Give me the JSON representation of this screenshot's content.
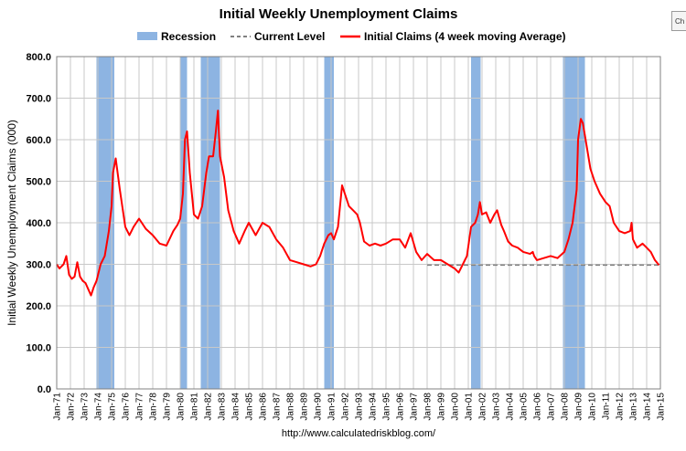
{
  "chart_data": {
    "type": "line",
    "title": "Initial Weekly Unemployment Claims",
    "ylabel": "Initial Weekly Unemployment Claims (000)",
    "xlabel": "",
    "ylim": [
      0,
      800
    ],
    "xlim": [
      1971.0,
      2015.0
    ],
    "y_ticks": [
      "0.0",
      "100.0",
      "200.0",
      "300.0",
      "400.0",
      "500.0",
      "600.0",
      "700.0",
      "800.0"
    ],
    "x_tick_labels": [
      "Jan-71",
      "Jan-72",
      "Jan-73",
      "Jan-74",
      "Jan-75",
      "Jan-76",
      "Jan-77",
      "Jan-78",
      "Jan-79",
      "Jan-80",
      "Jan-81",
      "Jan-82",
      "Jan-83",
      "Jan-84",
      "Jan-85",
      "Jan-86",
      "Jan-87",
      "Jan-88",
      "Jan-89",
      "Jan-90",
      "Jan-91",
      "Jan-92",
      "Jan-93",
      "Jan-94",
      "Jan-95",
      "Jan-96",
      "Jan-97",
      "Jan-98",
      "Jan-99",
      "Jan-00",
      "Jan-01",
      "Jan-02",
      "Jan-03",
      "Jan-04",
      "Jan-05",
      "Jan-06",
      "Jan-07",
      "Jan-08",
      "Jan-09",
      "Jan-10",
      "Jan-11",
      "Jan-12",
      "Jan-13",
      "Jan-14",
      "Jan-15"
    ],
    "grid": true,
    "legend": {
      "placement": "top",
      "entries": [
        {
          "name": "Recession",
          "kind": "bar",
          "color": "#8db4e2"
        },
        {
          "name": "Current Level",
          "kind": "dashed-line",
          "color": "#808080"
        },
        {
          "name": "Initial Claims (4 week moving Average)",
          "kind": "line",
          "color": "#ff0000"
        }
      ]
    },
    "recessions": [
      {
        "start": 1973.9,
        "end": 1975.2
      },
      {
        "start": 1980.0,
        "end": 1980.5
      },
      {
        "start": 1981.5,
        "end": 1982.9
      },
      {
        "start": 1990.5,
        "end": 1991.2
      },
      {
        "start": 2001.2,
        "end": 2001.9
      },
      {
        "start": 2007.9,
        "end": 2009.5
      }
    ],
    "current_level": {
      "value": 298,
      "x_start": 1998.0,
      "x_end": 2014.9
    },
    "series": [
      {
        "name": "Initial Claims (4 week moving Average)",
        "color": "#ff0000",
        "x": [
          1971.0,
          1971.2,
          1971.5,
          1971.7,
          1971.9,
          1972.1,
          1972.3,
          1972.5,
          1972.7,
          1972.9,
          1973.1,
          1973.3,
          1973.5,
          1973.7,
          1973.9,
          1974.2,
          1974.5,
          1974.8,
          1975.0,
          1975.1,
          1975.3,
          1975.6,
          1976.0,
          1976.3,
          1976.6,
          1977.0,
          1977.2,
          1977.5,
          1978.0,
          1978.5,
          1979.0,
          1979.5,
          1979.8,
          1980.0,
          1980.2,
          1980.35,
          1980.5,
          1980.7,
          1981.0,
          1981.3,
          1981.6,
          1981.9,
          1982.1,
          1982.4,
          1982.6,
          1982.75,
          1982.9,
          1983.2,
          1983.5,
          1983.9,
          1984.3,
          1984.7,
          1985.0,
          1985.5,
          1986.0,
          1986.5,
          1987.0,
          1987.5,
          1988.0,
          1988.5,
          1989.0,
          1989.5,
          1989.9,
          1990.2,
          1990.5,
          1990.8,
          1991.0,
          1991.2,
          1991.5,
          1991.8,
          1992.0,
          1992.3,
          1992.6,
          1992.9,
          1993.1,
          1993.4,
          1993.8,
          1994.2,
          1994.6,
          1995.0,
          1995.5,
          1996.0,
          1996.4,
          1996.8,
          1997.2,
          1997.6,
          1998.0,
          1998.5,
          1999.0,
          1999.5,
          2000.0,
          2000.3,
          2000.6,
          2000.9,
          2001.2,
          2001.5,
          2001.7,
          2001.85,
          2002.0,
          2002.3,
          2002.6,
          2002.9,
          2003.1,
          2003.4,
          2003.6,
          2003.9,
          2004.2,
          2004.6,
          2005.0,
          2005.5,
          2005.7,
          2005.8,
          2006.0,
          2006.5,
          2007.0,
          2007.5,
          2008.0,
          2008.3,
          2008.6,
          2008.9,
          2009.0,
          2009.2,
          2009.35,
          2009.6,
          2009.9,
          2010.2,
          2010.6,
          2011.0,
          2011.3,
          2011.6,
          2012.0,
          2012.4,
          2012.8,
          2012.9,
          2013.0,
          2013.3,
          2013.7,
          2014.0,
          2014.3,
          2014.6,
          2014.9
        ],
        "values": [
          300,
          290,
          300,
          320,
          275,
          265,
          270,
          305,
          270,
          260,
          255,
          240,
          225,
          245,
          260,
          300,
          320,
          380,
          440,
          520,
          555,
          480,
          390,
          370,
          390,
          410,
          400,
          385,
          370,
          350,
          345,
          380,
          395,
          410,
          470,
          600,
          620,
          520,
          420,
          410,
          440,
          520,
          560,
          560,
          620,
          670,
          560,
          510,
          430,
          380,
          350,
          380,
          400,
          370,
          400,
          390,
          360,
          340,
          310,
          305,
          300,
          295,
          300,
          320,
          350,
          370,
          375,
          360,
          390,
          490,
          470,
          440,
          430,
          420,
          400,
          355,
          345,
          350,
          345,
          350,
          360,
          360,
          340,
          375,
          330,
          310,
          325,
          310,
          310,
          300,
          290,
          280,
          300,
          320,
          390,
          400,
          420,
          450,
          420,
          425,
          400,
          420,
          430,
          395,
          380,
          355,
          345,
          340,
          330,
          325,
          330,
          320,
          310,
          315,
          320,
          315,
          330,
          360,
          400,
          480,
          600,
          650,
          640,
          590,
          530,
          500,
          470,
          450,
          440,
          400,
          380,
          375,
          380,
          400,
          360,
          340,
          350,
          340,
          330,
          310,
          298
        ]
      }
    ]
  },
  "source": "http://www.calculatedriskblog.com/",
  "corner_tab": "Ch"
}
